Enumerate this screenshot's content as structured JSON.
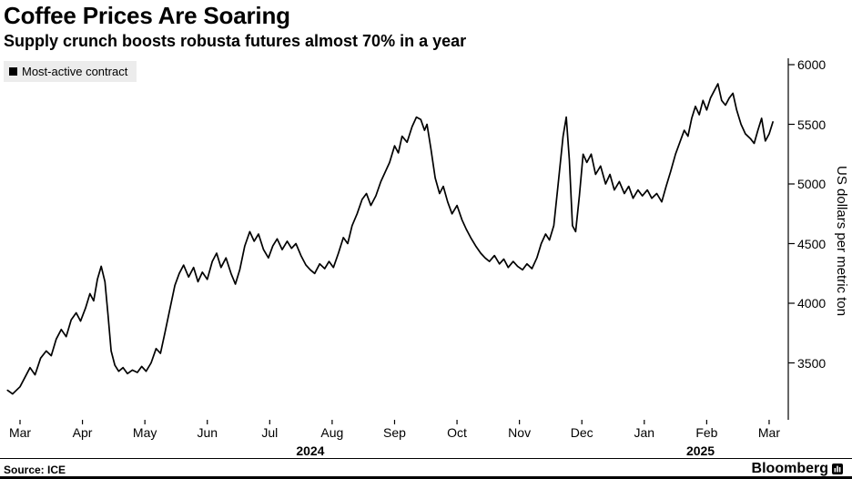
{
  "header": {
    "title": "Coffee Prices Are Soaring",
    "subtitle": "Supply crunch boosts robusta futures almost 70% in a year"
  },
  "legend": {
    "label": "Most-active contract"
  },
  "footer": {
    "source": "Source: ICE",
    "brand": "Bloomberg"
  },
  "colors": {
    "line": "#000000",
    "legend_bg": "#ececec",
    "background": "#ffffff"
  },
  "chart_data": {
    "type": "line",
    "title": "Coffee Prices Are Soaring",
    "subtitle": "Supply crunch boosts robusta futures almost 70% in a year",
    "ylabel": "US dollars per metric ton",
    "xlabel": "",
    "grid": false,
    "legend_position": "top-left",
    "axis_side": "right",
    "source": "ICE",
    "y_ticks": [
      3500,
      4000,
      4500,
      5000,
      5500,
      6000
    ],
    "ylim": [
      3000,
      6100
    ],
    "x_ticks": [
      "Mar",
      "Apr",
      "May",
      "Jun",
      "Jul",
      "Aug",
      "Sep",
      "Oct",
      "Nov",
      "Dec",
      "Jan",
      "Feb",
      "Mar"
    ],
    "x_year_labels": [
      {
        "label": "2024",
        "t": 4.65
      },
      {
        "label": "2025",
        "t": 10.9
      }
    ],
    "x_unit": "months from Mar 2024",
    "series": [
      {
        "name": "Most-active contract",
        "color": "#000000",
        "points": [
          [
            -0.2,
            3270
          ],
          [
            -0.12,
            3240
          ],
          [
            0.0,
            3300
          ],
          [
            0.08,
            3380
          ],
          [
            0.16,
            3460
          ],
          [
            0.24,
            3400
          ],
          [
            0.33,
            3540
          ],
          [
            0.42,
            3600
          ],
          [
            0.5,
            3560
          ],
          [
            0.58,
            3700
          ],
          [
            0.66,
            3780
          ],
          [
            0.74,
            3720
          ],
          [
            0.82,
            3860
          ],
          [
            0.9,
            3920
          ],
          [
            0.97,
            3850
          ],
          [
            1.05,
            3960
          ],
          [
            1.12,
            4080
          ],
          [
            1.18,
            4020
          ],
          [
            1.24,
            4200
          ],
          [
            1.3,
            4310
          ],
          [
            1.36,
            4180
          ],
          [
            1.41,
            3900
          ],
          [
            1.46,
            3600
          ],
          [
            1.52,
            3480
          ],
          [
            1.58,
            3430
          ],
          [
            1.65,
            3460
          ],
          [
            1.72,
            3410
          ],
          [
            1.8,
            3440
          ],
          [
            1.88,
            3420
          ],
          [
            1.95,
            3470
          ],
          [
            2.02,
            3430
          ],
          [
            2.1,
            3500
          ],
          [
            2.18,
            3620
          ],
          [
            2.25,
            3580
          ],
          [
            2.32,
            3750
          ],
          [
            2.4,
            3950
          ],
          [
            2.48,
            4150
          ],
          [
            2.55,
            4250
          ],
          [
            2.62,
            4320
          ],
          [
            2.7,
            4220
          ],
          [
            2.78,
            4300
          ],
          [
            2.85,
            4180
          ],
          [
            2.92,
            4260
          ],
          [
            3.0,
            4200
          ],
          [
            3.08,
            4350
          ],
          [
            3.15,
            4420
          ],
          [
            3.22,
            4300
          ],
          [
            3.3,
            4380
          ],
          [
            3.38,
            4250
          ],
          [
            3.45,
            4160
          ],
          [
            3.52,
            4280
          ],
          [
            3.6,
            4480
          ],
          [
            3.68,
            4600
          ],
          [
            3.75,
            4520
          ],
          [
            3.82,
            4580
          ],
          [
            3.9,
            4450
          ],
          [
            3.98,
            4380
          ],
          [
            4.05,
            4480
          ],
          [
            4.12,
            4540
          ],
          [
            4.2,
            4450
          ],
          [
            4.28,
            4520
          ],
          [
            4.35,
            4460
          ],
          [
            4.42,
            4500
          ],
          [
            4.5,
            4400
          ],
          [
            4.58,
            4320
          ],
          [
            4.65,
            4280
          ],
          [
            4.72,
            4250
          ],
          [
            4.8,
            4330
          ],
          [
            4.88,
            4290
          ],
          [
            4.95,
            4350
          ],
          [
            5.02,
            4300
          ],
          [
            5.1,
            4420
          ],
          [
            5.18,
            4550
          ],
          [
            5.25,
            4500
          ],
          [
            5.32,
            4650
          ],
          [
            5.4,
            4750
          ],
          [
            5.48,
            4870
          ],
          [
            5.55,
            4920
          ],
          [
            5.62,
            4820
          ],
          [
            5.7,
            4900
          ],
          [
            5.78,
            5020
          ],
          [
            5.85,
            5100
          ],
          [
            5.92,
            5180
          ],
          [
            6.0,
            5320
          ],
          [
            6.06,
            5260
          ],
          [
            6.12,
            5400
          ],
          [
            6.2,
            5350
          ],
          [
            6.28,
            5480
          ],
          [
            6.35,
            5560
          ],
          [
            6.42,
            5540
          ],
          [
            6.48,
            5450
          ],
          [
            6.52,
            5500
          ],
          [
            6.58,
            5300
          ],
          [
            6.65,
            5050
          ],
          [
            6.72,
            4920
          ],
          [
            6.78,
            4980
          ],
          [
            6.85,
            4850
          ],
          [
            6.92,
            4750
          ],
          [
            7.0,
            4820
          ],
          [
            7.08,
            4700
          ],
          [
            7.15,
            4620
          ],
          [
            7.22,
            4550
          ],
          [
            7.3,
            4480
          ],
          [
            7.38,
            4420
          ],
          [
            7.45,
            4380
          ],
          [
            7.52,
            4350
          ],
          [
            7.6,
            4400
          ],
          [
            7.68,
            4330
          ],
          [
            7.75,
            4370
          ],
          [
            7.82,
            4300
          ],
          [
            7.9,
            4350
          ],
          [
            7.97,
            4310
          ],
          [
            8.05,
            4280
          ],
          [
            8.12,
            4330
          ],
          [
            8.2,
            4290
          ],
          [
            8.28,
            4380
          ],
          [
            8.35,
            4500
          ],
          [
            8.42,
            4580
          ],
          [
            8.48,
            4530
          ],
          [
            8.55,
            4650
          ],
          [
            8.62,
            5000
          ],
          [
            8.7,
            5400
          ],
          [
            8.75,
            5560
          ],
          [
            8.8,
            5200
          ],
          [
            8.85,
            4650
          ],
          [
            8.9,
            4600
          ],
          [
            8.96,
            4900
          ],
          [
            9.02,
            5250
          ],
          [
            9.08,
            5180
          ],
          [
            9.15,
            5250
          ],
          [
            9.22,
            5080
          ],
          [
            9.3,
            5150
          ],
          [
            9.38,
            5000
          ],
          [
            9.45,
            5080
          ],
          [
            9.52,
            4950
          ],
          [
            9.6,
            5020
          ],
          [
            9.68,
            4920
          ],
          [
            9.75,
            4980
          ],
          [
            9.82,
            4880
          ],
          [
            9.9,
            4950
          ],
          [
            9.97,
            4900
          ],
          [
            10.05,
            4950
          ],
          [
            10.12,
            4880
          ],
          [
            10.2,
            4920
          ],
          [
            10.28,
            4850
          ],
          [
            10.35,
            4980
          ],
          [
            10.42,
            5100
          ],
          [
            10.5,
            5250
          ],
          [
            10.57,
            5350
          ],
          [
            10.64,
            5450
          ],
          [
            10.7,
            5400
          ],
          [
            10.76,
            5550
          ],
          [
            10.82,
            5650
          ],
          [
            10.88,
            5580
          ],
          [
            10.94,
            5700
          ],
          [
            11.0,
            5620
          ],
          [
            11.06,
            5720
          ],
          [
            11.12,
            5780
          ],
          [
            11.18,
            5840
          ],
          [
            11.24,
            5700
          ],
          [
            11.3,
            5660
          ],
          [
            11.36,
            5720
          ],
          [
            11.42,
            5760
          ],
          [
            11.48,
            5620
          ],
          [
            11.55,
            5500
          ],
          [
            11.62,
            5420
          ],
          [
            11.7,
            5380
          ],
          [
            11.76,
            5340
          ],
          [
            11.82,
            5450
          ],
          [
            11.88,
            5550
          ],
          [
            11.94,
            5360
          ],
          [
            12.0,
            5420
          ],
          [
            12.06,
            5520
          ]
        ]
      }
    ]
  }
}
